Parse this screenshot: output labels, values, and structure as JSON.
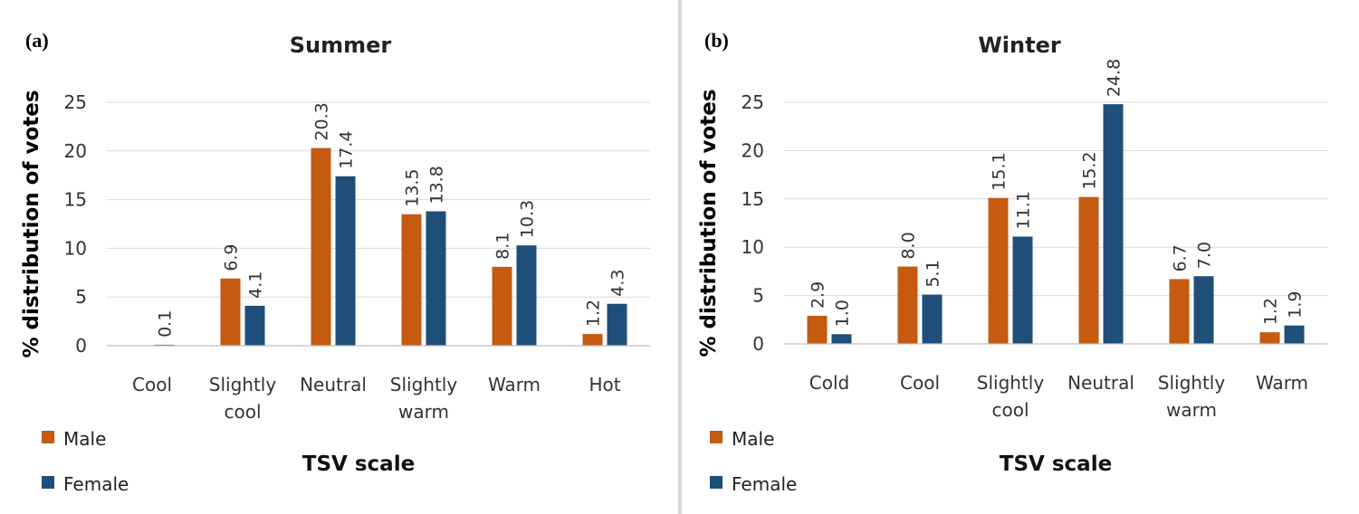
{
  "chart_data": [
    {
      "type": "bar",
      "panel": "(a)",
      "title": "Summer",
      "xlabel": "TSV scale",
      "ylabel": "% distribution of votes",
      "ylim": [
        0,
        25
      ],
      "yticks": [
        "0",
        "5",
        "10",
        "15",
        "20",
        "25"
      ],
      "categories": [
        [
          "Cool"
        ],
        [
          "Slightly",
          "cool"
        ],
        [
          "Neutral"
        ],
        [
          "Slightly",
          "warm"
        ],
        [
          "Warm"
        ],
        [
          "Hot"
        ]
      ],
      "series": [
        {
          "name": "Male",
          "color": "#C55A11",
          "values": [
            null,
            6.9,
            20.3,
            13.5,
            8.1,
            1.2
          ],
          "labels": [
            "",
            "6.9",
            "20.3",
            "13.5",
            "8.1",
            "1.2"
          ]
        },
        {
          "name": "Female",
          "color": "#1F4E79",
          "values": [
            0.1,
            4.1,
            17.4,
            13.8,
            10.3,
            4.3
          ],
          "labels": [
            "0.1",
            "4.1",
            "17.4",
            "13.8",
            "10.3",
            "4.3"
          ]
        }
      ],
      "grid": true,
      "legend": "bottom-left"
    },
    {
      "type": "bar",
      "panel": "(b)",
      "title": "Winter",
      "xlabel": "TSV scale",
      "ylabel": "% distribution of votes",
      "ylim": [
        0,
        25
      ],
      "yticks": [
        "0",
        "5",
        "10",
        "15",
        "20",
        "25"
      ],
      "categories": [
        [
          "Cold"
        ],
        [
          "Cool"
        ],
        [
          "Slightly",
          "cool"
        ],
        [
          "Neutral"
        ],
        [
          "Slightly",
          "warm"
        ],
        [
          "Warm"
        ]
      ],
      "series": [
        {
          "name": "Male",
          "color": "#C55A11",
          "values": [
            2.9,
            8.0,
            15.1,
            15.2,
            6.7,
            1.2
          ],
          "labels": [
            "2.9",
            "8.0",
            "15.1",
            "15.2",
            "6.7",
            "1.2"
          ]
        },
        {
          "name": "Female",
          "color": "#1F4E79",
          "values": [
            1.0,
            5.1,
            11.1,
            24.8,
            7.0,
            1.9
          ],
          "labels": [
            "1.0",
            "5.1",
            "11.1",
            "24.8",
            "7.0",
            "1.9"
          ]
        }
      ],
      "grid": true,
      "legend": "bottom-left"
    }
  ]
}
